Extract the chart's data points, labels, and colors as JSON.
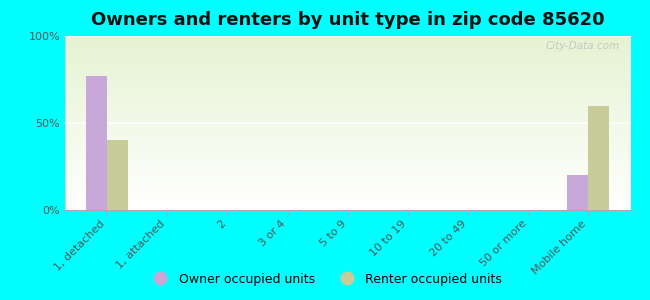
{
  "title": "Owners and renters by unit type in zip code 85620",
  "categories": [
    "1, detached",
    "1, attached",
    "2",
    "3 or 4",
    "5 to 9",
    "10 to 19",
    "20 to 49",
    "50 or more",
    "Mobile home"
  ],
  "owner_values": [
    77,
    0,
    0,
    0,
    0,
    0,
    0,
    0,
    20
  ],
  "renter_values": [
    40,
    0,
    0,
    0,
    0,
    0,
    0,
    0,
    60
  ],
  "owner_color": "#c8a8d8",
  "renter_color": "#c8cc98",
  "background_color": "#00ffff",
  "ylim": [
    0,
    100
  ],
  "yticks": [
    0,
    50,
    100
  ],
  "ytick_labels": [
    "0%",
    "50%",
    "100%"
  ],
  "bar_width": 0.35,
  "title_fontsize": 13,
  "tick_fontsize": 8,
  "legend_owner": "Owner occupied units",
  "legend_renter": "Renter occupied units",
  "watermark": "City-Data.com"
}
